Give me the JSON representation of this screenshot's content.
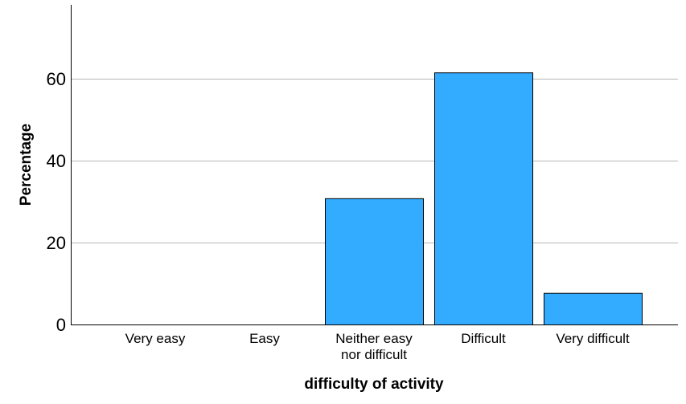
{
  "chart_data": {
    "type": "bar",
    "xlabel": "difficulty of activity",
    "ylabel": "Percentage",
    "categories": [
      [
        "Very easy"
      ],
      [
        "Easy"
      ],
      [
        "Neither easy",
        "nor difficult"
      ],
      [
        "Difficult"
      ],
      [
        "Very difficult"
      ]
    ],
    "values": [
      0,
      0,
      30.8,
      61.5,
      7.7
    ],
    "ylim": [
      0,
      78
    ],
    "yticks": [
      0,
      20,
      40,
      60
    ],
    "grid": true,
    "colors": {
      "bar": "#33abff",
      "bar_edge": "#000000",
      "grid": "#b5b5b5",
      "axis": "#000000"
    }
  }
}
